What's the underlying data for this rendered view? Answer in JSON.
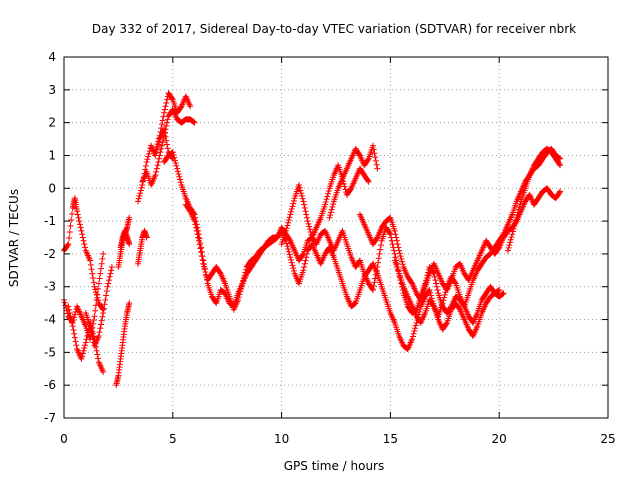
{
  "chart_data": {
    "type": "scatter",
    "title": "Day 332 of 2017, Sidereal Day-to-day VTEC variation (SDTVAR) for receiver nbrk",
    "xlabel": "GPS time / hours",
    "ylabel": "SDTVAR / TECUs",
    "xlim": [
      0,
      25
    ],
    "ylim": [
      -7,
      4
    ],
    "xticks": [
      0,
      5,
      10,
      15,
      20,
      25
    ],
    "yticks": [
      4,
      3,
      2,
      1,
      0,
      -1,
      -2,
      -3,
      -4,
      -5,
      -6,
      -7
    ],
    "marker": "+",
    "color": "#ff0000",
    "grid": true,
    "series": [
      {
        "name": "t0",
        "x": [
          0.0,
          0.2,
          0.4,
          0.5,
          0.6,
          0.8,
          1.0,
          1.2,
          1.4,
          1.6,
          1.8
        ],
        "y": [
          -1.9,
          -1.7,
          -0.6,
          -0.3,
          -0.7,
          -1.3,
          -1.9,
          -2.2,
          -3.0,
          -3.5,
          -3.7
        ]
      },
      {
        "name": "t1",
        "x": [
          0.0,
          0.2,
          0.4,
          0.6,
          0.8,
          1.0,
          1.2,
          1.4,
          1.6,
          1.8
        ],
        "y": [
          -3.4,
          -3.9,
          -4.1,
          -3.6,
          -3.9,
          -4.2,
          -4.6,
          -3.9,
          -2.9,
          -2.0
        ]
      },
      {
        "name": "t2",
        "x": [
          0.2,
          0.4,
          0.6,
          0.8,
          1.0,
          1.2,
          1.4,
          1.6,
          1.8
        ],
        "y": [
          -3.6,
          -4.2,
          -4.9,
          -5.2,
          -4.7,
          -4.1,
          -4.6,
          -5.3,
          -5.6
        ]
      },
      {
        "name": "t3",
        "x": [
          1.0,
          1.2,
          1.4,
          1.6,
          1.8,
          2.0,
          2.2
        ],
        "y": [
          -3.8,
          -4.2,
          -4.8,
          -4.5,
          -3.8,
          -3.0,
          -2.4
        ]
      },
      {
        "name": "t4",
        "x": [
          2.4,
          2.5,
          2.6,
          2.7,
          2.8,
          2.9,
          3.0
        ],
        "y": [
          -6.0,
          -5.7,
          -5.2,
          -4.7,
          -4.2,
          -3.8,
          -3.5
        ]
      },
      {
        "name": "t5",
        "x": [
          2.5,
          2.6,
          2.7,
          2.8,
          2.9,
          3.0
        ],
        "y": [
          -2.4,
          -2.0,
          -1.6,
          -1.4,
          -1.2,
          -0.9
        ]
      },
      {
        "name": "t6",
        "x": [
          2.6,
          2.7,
          2.8,
          2.9,
          3.0
        ],
        "y": [
          -1.8,
          -1.5,
          -1.3,
          -1.5,
          -1.7
        ]
      },
      {
        "name": "t7",
        "x": [
          3.4,
          3.5,
          3.6,
          3.7,
          3.8
        ],
        "y": [
          -2.3,
          -1.9,
          -1.5,
          -1.3,
          -1.5
        ]
      },
      {
        "name": "t8",
        "x": [
          3.4,
          3.6,
          3.8,
          4.0,
          4.2,
          4.4,
          4.6,
          4.8,
          5.0
        ],
        "y": [
          -0.4,
          0.1,
          0.8,
          1.3,
          1.0,
          1.5,
          1.8,
          1.1,
          0.9
        ]
      },
      {
        "name": "t9",
        "x": [
          3.6,
          3.8,
          4.0,
          4.2,
          4.4,
          4.6,
          4.8,
          5.0,
          5.2,
          5.4,
          5.6,
          5.8,
          6.0
        ],
        "y": [
          0.2,
          0.5,
          0.1,
          0.4,
          1.0,
          1.6,
          2.2,
          2.4,
          2.1,
          2.0,
          2.1,
          2.1,
          2.0
        ]
      },
      {
        "name": "t10",
        "x": [
          4.2,
          4.4,
          4.6,
          4.8,
          5.0,
          5.2,
          5.4,
          5.6,
          5.8
        ],
        "y": [
          1.1,
          1.6,
          2.3,
          2.9,
          2.7,
          2.3,
          2.5,
          2.8,
          2.5
        ]
      },
      {
        "name": "t11",
        "x": [
          4.6,
          4.8,
          5.0,
          5.2,
          5.4,
          5.6,
          5.8,
          6.0,
          6.2,
          6.4,
          6.6,
          6.8,
          7.0,
          7.2,
          7.4,
          7.6,
          7.8,
          8.0,
          8.2,
          8.4,
          8.6,
          8.8,
          9.0,
          9.2,
          9.4,
          9.6,
          9.8,
          10.0,
          10.2,
          10.4,
          10.6,
          10.8,
          11.0,
          11.2,
          11.4,
          11.6,
          11.8,
          12.0,
          12.2,
          12.4,
          12.6,
          12.8,
          13.0,
          13.2,
          13.4,
          13.6,
          13.8,
          14.0,
          14.2,
          14.4,
          14.6,
          14.8,
          15.0,
          15.2,
          15.4,
          15.6,
          15.8,
          16.0,
          16.2,
          16.4,
          16.6,
          16.8,
          17.0,
          17.2,
          17.4,
          17.6,
          17.8,
          18.0,
          18.2,
          18.4,
          18.6,
          18.8,
          19.0,
          19.2,
          19.4,
          19.6,
          19.8,
          20.0,
          20.2
        ],
        "y": [
          0.8,
          1.0,
          1.1,
          0.6,
          0.1,
          -0.3,
          -0.6,
          -0.8,
          -1.4,
          -2.2,
          -2.9,
          -3.3,
          -3.5,
          -3.1,
          -3.2,
          -3.5,
          -3.6,
          -3.2,
          -2.9,
          -2.6,
          -2.4,
          -2.2,
          -2.0,
          -1.8,
          -1.7,
          -1.6,
          -1.5,
          -1.2,
          -1.4,
          -1.6,
          -1.9,
          -2.2,
          -2.0,
          -1.6,
          -1.5,
          -1.7,
          -1.4,
          -1.3,
          -1.6,
          -1.9,
          -1.6,
          -1.3,
          -1.7,
          -2.1,
          -2.4,
          -2.2,
          -2.6,
          -2.9,
          -3.1,
          -2.4,
          -1.6,
          -1.2,
          -1.4,
          -2.0,
          -2.6,
          -3.2,
          -3.6,
          -3.8,
          -3.7,
          -3.3,
          -2.9,
          -2.4,
          -2.6,
          -3.2,
          -3.6,
          -3.8,
          -3.6,
          -3.3,
          -3.4,
          -3.6,
          -3.9,
          -4.1,
          -3.8,
          -3.4,
          -3.2,
          -3.0,
          -3.2,
          -3.3,
          -3.2
        ]
      },
      {
        "name": "t12",
        "x": [
          5.6,
          5.8,
          6.0,
          6.2,
          6.4,
          6.6,
          6.8,
          7.0,
          7.2,
          7.4,
          7.6,
          7.8,
          8.0,
          8.2,
          8.4,
          8.6,
          8.8,
          9.0,
          9.2,
          9.4,
          9.6,
          9.8,
          10.0,
          10.2,
          10.4,
          10.6,
          10.8,
          11.0,
          11.2,
          11.4,
          11.6,
          11.8,
          12.0,
          12.2,
          12.4,
          12.6,
          12.8,
          13.0,
          13.2,
          13.4,
          13.6,
          13.8,
          14.0,
          14.2,
          14.4,
          14.6,
          14.8,
          15.0,
          15.2,
          15.4,
          15.6,
          15.8,
          16.0,
          16.2,
          16.4,
          16.6,
          16.8,
          17.0,
          17.2,
          17.4,
          17.6,
          17.8,
          18.0,
          18.2,
          18.4,
          18.6,
          18.8,
          19.0,
          19.2,
          19.4,
          19.6,
          19.8,
          20.0
        ],
        "y": [
          -0.5,
          -0.7,
          -1.0,
          -1.6,
          -2.3,
          -2.8,
          -2.6,
          -2.4,
          -2.6,
          -2.9,
          -3.3,
          -3.7,
          -3.4,
          -2.9,
          -2.4,
          -2.2,
          -2.1,
          -1.9,
          -1.8,
          -1.6,
          -1.5,
          -1.5,
          -1.3,
          -1.6,
          -2.1,
          -2.6,
          -2.9,
          -2.5,
          -1.9,
          -1.7,
          -2.0,
          -2.3,
          -2.0,
          -1.8,
          -2.1,
          -2.5,
          -2.9,
          -3.3,
          -3.6,
          -3.5,
          -3.1,
          -2.7,
          -2.5,
          -2.3,
          -2.6,
          -3.0,
          -3.4,
          -3.8,
          -4.1,
          -4.5,
          -4.8,
          -4.9,
          -4.6,
          -4.1,
          -3.6,
          -3.3,
          -3.1,
          -3.6,
          -4.0,
          -4.3,
          -4.1,
          -3.7,
          -3.5,
          -3.7,
          -4.0,
          -4.3,
          -4.5,
          -4.2,
          -3.8,
          -3.5,
          -3.3,
          -3.2,
          -3.1
        ]
      },
      {
        "name": "t13",
        "x": [
          10.0,
          10.2,
          10.4,
          10.6,
          10.8,
          11.0,
          11.2,
          11.4,
          11.6,
          11.8,
          12.0,
          12.2,
          12.4,
          12.6,
          12.8,
          13.0,
          13.2,
          13.4,
          13.6,
          13.8,
          14.0
        ],
        "y": [
          -1.7,
          -1.3,
          -0.8,
          -0.3,
          0.1,
          -0.4,
          -1.0,
          -1.5,
          -1.2,
          -0.9,
          -0.5,
          0.0,
          0.4,
          0.7,
          0.3,
          -0.2,
          0.0,
          0.3,
          0.6,
          0.4,
          0.2
        ]
      },
      {
        "name": "t14",
        "x": [
          12.2,
          12.4,
          12.6,
          12.8,
          13.0,
          13.2,
          13.4,
          13.6,
          13.8,
          14.0,
          14.2,
          14.4
        ],
        "y": [
          -0.9,
          -0.4,
          0.0,
          0.3,
          0.6,
          0.9,
          1.2,
          1.0,
          0.7,
          0.9,
          1.3,
          0.6
        ]
      },
      {
        "name": "t15",
        "x": [
          13.6,
          13.8,
          14.0,
          14.2,
          14.4,
          14.6,
          14.8,
          15.0,
          15.2,
          15.4,
          15.6,
          15.8,
          16.0,
          16.2,
          16.4,
          16.6,
          16.8,
          17.0,
          17.2,
          17.4,
          17.6,
          17.8,
          18.0,
          18.2,
          18.4,
          18.6,
          18.8,
          19.0,
          19.2,
          19.4,
          19.6,
          19.8,
          20.0,
          20.2,
          20.4,
          20.6,
          20.8,
          21.0,
          21.2,
          21.4,
          21.6,
          21.8,
          22.0,
          22.2,
          22.4,
          22.6,
          22.8
        ],
        "y": [
          -0.8,
          -1.1,
          -1.4,
          -1.7,
          -1.5,
          -1.2,
          -1.0,
          -0.9,
          -1.3,
          -1.9,
          -2.4,
          -2.7,
          -2.9,
          -3.2,
          -3.4,
          -3.0,
          -2.6,
          -2.3,
          -2.6,
          -2.9,
          -3.1,
          -2.8,
          -2.4,
          -2.3,
          -2.6,
          -2.8,
          -2.5,
          -2.2,
          -1.9,
          -1.6,
          -1.8,
          -2.0,
          -1.8,
          -1.5,
          -1.3,
          -1.2,
          -1.0,
          -0.7,
          -0.4,
          -0.2,
          -0.5,
          -0.3,
          -0.1,
          0.0,
          -0.2,
          -0.3,
          -0.1
        ]
      },
      {
        "name": "t16",
        "x": [
          15.2,
          15.4,
          15.6,
          15.8,
          16.0,
          16.2,
          16.4,
          16.6,
          16.8,
          17.0,
          17.2,
          17.4,
          17.6,
          17.8,
          18.0,
          18.2,
          18.4,
          18.6,
          18.8,
          19.0,
          19.2,
          19.4,
          19.6,
          19.8,
          20.0,
          20.2,
          20.4,
          20.6,
          20.8,
          21.0,
          21.2,
          21.4,
          21.6,
          21.8,
          22.0,
          22.2,
          22.4,
          22.6,
          22.8
        ],
        "y": [
          -2.2,
          -2.6,
          -3.0,
          -3.3,
          -3.6,
          -3.9,
          -4.1,
          -3.8,
          -3.4,
          -3.6,
          -3.9,
          -3.5,
          -3.0,
          -2.7,
          -2.9,
          -3.3,
          -3.6,
          -3.2,
          -2.8,
          -2.5,
          -2.3,
          -2.1,
          -2.0,
          -1.8,
          -1.6,
          -1.4,
          -1.1,
          -0.8,
          -0.4,
          -0.1,
          0.2,
          0.4,
          0.6,
          0.7,
          0.9,
          1.1,
          1.2,
          1.0,
          0.9
        ]
      },
      {
        "name": "t17",
        "x": [
          20.4,
          20.6,
          20.8,
          21.0,
          21.2,
          21.4,
          21.6,
          21.8,
          22.0,
          22.2,
          22.4,
          22.6,
          22.8
        ],
        "y": [
          -1.9,
          -1.4,
          -0.9,
          -0.4,
          0.0,
          0.4,
          0.7,
          0.9,
          1.1,
          1.2,
          1.1,
          0.9,
          0.7
        ]
      }
    ]
  }
}
